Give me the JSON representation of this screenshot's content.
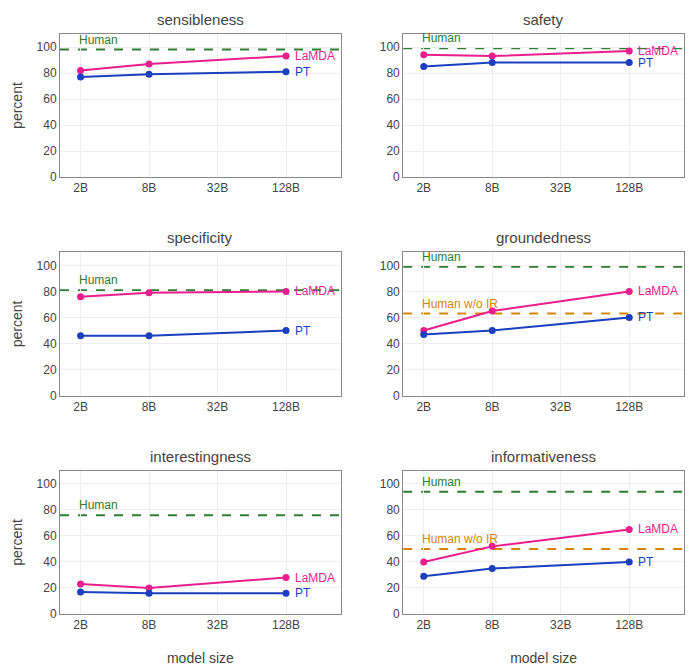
{
  "chart_data": [
    {
      "type": "line",
      "title": "sensibleness",
      "ylabel": "percent",
      "categories": [
        "2B",
        "8B",
        "32B",
        "128B"
      ],
      "series": [
        {
          "name": "LaMDA",
          "color": "#e91e8c",
          "marker": "circle",
          "line_style": "solid",
          "values": [
            82,
            87,
            null,
            93
          ]
        },
        {
          "name": "PT",
          "color": "#1a3fbf",
          "marker": "circle",
          "line_style": "solid",
          "values": [
            77,
            79,
            null,
            81
          ]
        },
        {
          "name": "Human",
          "type": "hline",
          "color": "#2e7d32",
          "line_style": "dash",
          "value": 98
        }
      ],
      "ylim": [
        0,
        110
      ],
      "yticks": [
        0,
        20,
        40,
        60,
        80,
        100
      ],
      "grid": true
    },
    {
      "type": "line",
      "title": "safety",
      "categories": [
        "2B",
        "8B",
        "32B",
        "128B"
      ],
      "series": [
        {
          "name": "LaMDA",
          "color": "#e91e8c",
          "marker": "circle",
          "line_style": "solid",
          "values": [
            94,
            93,
            null,
            97
          ]
        },
        {
          "name": "PT",
          "color": "#1a3fbf",
          "marker": "circle",
          "line_style": "solid",
          "values": [
            85,
            88,
            null,
            88
          ]
        },
        {
          "name": "Human",
          "type": "hline",
          "color": "#2e7d32",
          "line_style": "dash",
          "value": 99
        }
      ],
      "ylim": [
        0,
        110
      ],
      "yticks": [
        0,
        20,
        40,
        60,
        80,
        100
      ],
      "grid": true
    },
    {
      "type": "line",
      "title": "specificity",
      "ylabel": "percent",
      "categories": [
        "2B",
        "8B",
        "32B",
        "128B"
      ],
      "series": [
        {
          "name": "LaMDA",
          "color": "#e91e8c",
          "marker": "circle",
          "line_style": "solid",
          "values": [
            76,
            79,
            null,
            80
          ]
        },
        {
          "name": "PT",
          "color": "#1a3fbf",
          "marker": "circle",
          "line_style": "solid",
          "values": [
            46,
            46,
            null,
            50
          ]
        },
        {
          "name": "Human",
          "type": "hline",
          "color": "#2e7d32",
          "line_style": "dash",
          "value": 81
        }
      ],
      "ylim": [
        0,
        110
      ],
      "yticks": [
        0,
        20,
        40,
        60,
        80,
        100
      ],
      "grid": true
    },
    {
      "type": "line",
      "title": "groundedness",
      "categories": [
        "2B",
        "8B",
        "32B",
        "128B"
      ],
      "series": [
        {
          "name": "LaMDA",
          "color": "#e91e8c",
          "marker": "circle",
          "line_style": "solid",
          "values": [
            50,
            65,
            null,
            80
          ]
        },
        {
          "name": "PT",
          "color": "#1a3fbf",
          "marker": "circle",
          "line_style": "solid",
          "values": [
            47,
            50,
            null,
            60
          ]
        },
        {
          "name": "Human",
          "type": "hline",
          "color": "#2e7d32",
          "line_style": "dash",
          "value": 99
        },
        {
          "name": "Human w/o IR",
          "type": "hline",
          "color": "#d4850a",
          "line_style": "dash",
          "value": 63
        }
      ],
      "ylim": [
        0,
        110
      ],
      "yticks": [
        0,
        20,
        40,
        60,
        80,
        100
      ],
      "grid": true
    },
    {
      "type": "line",
      "title": "interestingness",
      "ylabel": "percent",
      "xlabel": "model size",
      "categories": [
        "2B",
        "8B",
        "32B",
        "128B"
      ],
      "series": [
        {
          "name": "LaMDA",
          "color": "#e91e8c",
          "marker": "circle",
          "line_style": "solid",
          "values": [
            23,
            20,
            null,
            28
          ]
        },
        {
          "name": "PT",
          "color": "#1a3fbf",
          "marker": "circle",
          "line_style": "solid",
          "values": [
            17,
            16,
            null,
            16
          ]
        },
        {
          "name": "Human",
          "type": "hline",
          "color": "#2e7d32",
          "line_style": "dash",
          "value": 76
        }
      ],
      "ylim": [
        0,
        110
      ],
      "yticks": [
        0,
        20,
        40,
        60,
        80,
        100
      ],
      "grid": true
    },
    {
      "type": "line",
      "title": "informativeness",
      "xlabel": "model size",
      "categories": [
        "2B",
        "8B",
        "32B",
        "128B"
      ],
      "series": [
        {
          "name": "LaMDA",
          "color": "#e91e8c",
          "marker": "circle",
          "line_style": "solid",
          "values": [
            40,
            52,
            null,
            65
          ]
        },
        {
          "name": "PT",
          "color": "#1a3fbf",
          "marker": "circle",
          "line_style": "solid",
          "values": [
            29,
            35,
            null,
            40
          ]
        },
        {
          "name": "Human",
          "type": "hline",
          "color": "#2e7d32",
          "line_style": "dash",
          "value": 94
        },
        {
          "name": "Human w/o IR",
          "type": "hline",
          "color": "#d4850a",
          "line_style": "dash",
          "value": 50
        }
      ],
      "ylim": [
        0,
        110
      ],
      "yticks": [
        0,
        20,
        40,
        60,
        80,
        100
      ],
      "grid": true
    }
  ]
}
